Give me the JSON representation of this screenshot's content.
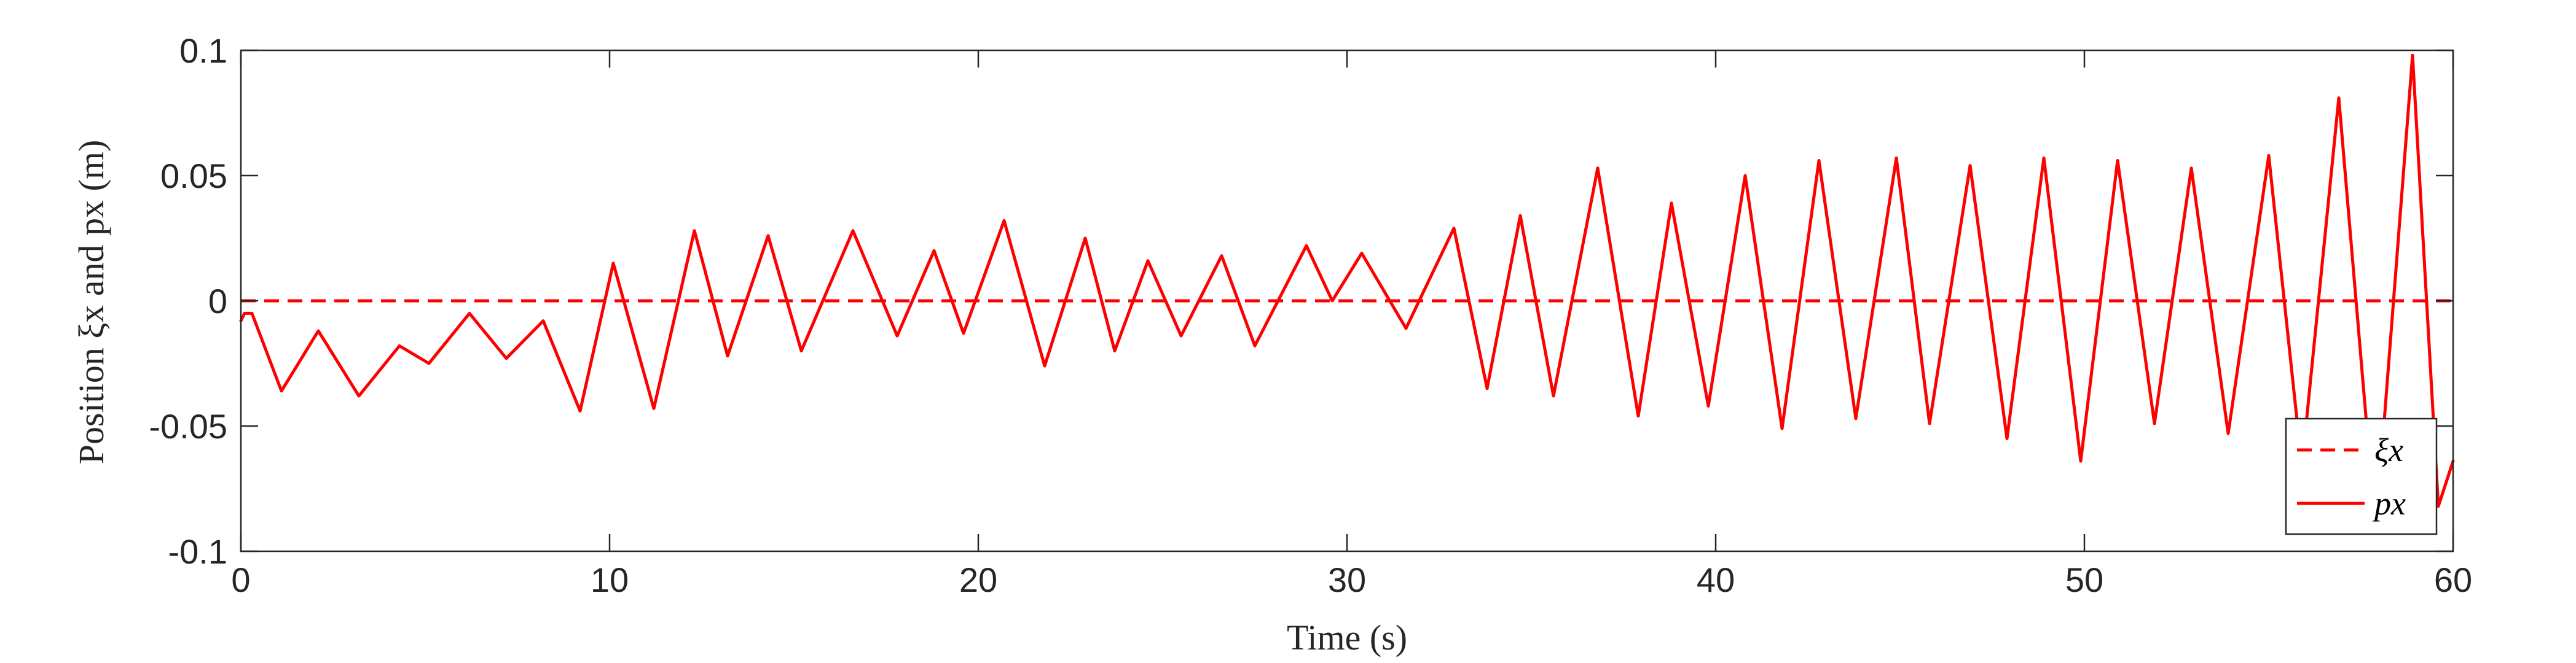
{
  "chart_data": {
    "type": "line",
    "title": "",
    "xlabel": "Time (s)",
    "ylabel": "Position ξx and px (m)",
    "xlim": [
      0,
      60
    ],
    "ylim": [
      -0.1,
      0.1
    ],
    "xticks": [
      0,
      10,
      20,
      30,
      40,
      50,
      60
    ],
    "xtick_labels": [
      "0",
      "10",
      "20",
      "30",
      "40",
      "50",
      "60"
    ],
    "yticks": [
      -0.1,
      -0.05,
      0,
      0.05,
      0.1
    ],
    "ytick_labels": [
      "-0.1",
      "-0.05",
      "0",
      "0.05",
      "0.1"
    ],
    "grid": false,
    "legend_position": "bottom-right",
    "series": [
      {
        "name": "ξx",
        "style": "dashed",
        "color": "#ff0000",
        "x": [
          0,
          60
        ],
        "y": [
          0,
          0
        ]
      },
      {
        "name": "px",
        "style": "solid",
        "color": "#ff0000",
        "x": [
          0,
          0.1,
          0.3,
          1.1,
          2.1,
          3.2,
          4.3,
          5.1,
          6.2,
          7.2,
          8.2,
          9.2,
          10.1,
          11.2,
          12.3,
          13.2,
          14.3,
          15.2,
          16.6,
          17.8,
          18.8,
          19.6,
          20.7,
          21.8,
          22.9,
          23.7,
          24.6,
          25.5,
          26.6,
          27.5,
          28.9,
          29.6,
          30.4,
          31.6,
          32.9,
          33.8,
          34.7,
          35.6,
          36.8,
          37.9,
          38.8,
          39.8,
          40.8,
          41.8,
          42.8,
          43.8,
          44.9,
          45.8,
          46.9,
          47.9,
          48.9,
          49.9,
          50.9,
          51.9,
          52.9,
          53.9,
          55.0,
          55.9,
          56.9,
          57.9,
          58.9,
          59.6,
          60.0
        ],
        "y": [
          -0.008,
          -0.005,
          -0.005,
          -0.036,
          -0.012,
          -0.038,
          -0.018,
          -0.025,
          -0.005,
          -0.023,
          -0.008,
          -0.044,
          0.015,
          -0.043,
          0.028,
          -0.022,
          0.026,
          -0.02,
          0.028,
          -0.014,
          0.02,
          -0.013,
          0.032,
          -0.026,
          0.025,
          -0.02,
          0.016,
          -0.014,
          0.018,
          -0.018,
          0.022,
          0.0,
          0.019,
          -0.011,
          0.029,
          -0.035,
          0.034,
          -0.038,
          0.053,
          -0.046,
          0.039,
          -0.042,
          0.05,
          -0.051,
          0.056,
          -0.047,
          0.057,
          -0.049,
          0.054,
          -0.055,
          0.057,
          -0.064,
          0.056,
          -0.049,
          0.053,
          -0.053,
          0.058,
          -0.066,
          0.081,
          -0.092,
          0.098,
          -0.082,
          -0.064
        ]
      }
    ]
  }
}
